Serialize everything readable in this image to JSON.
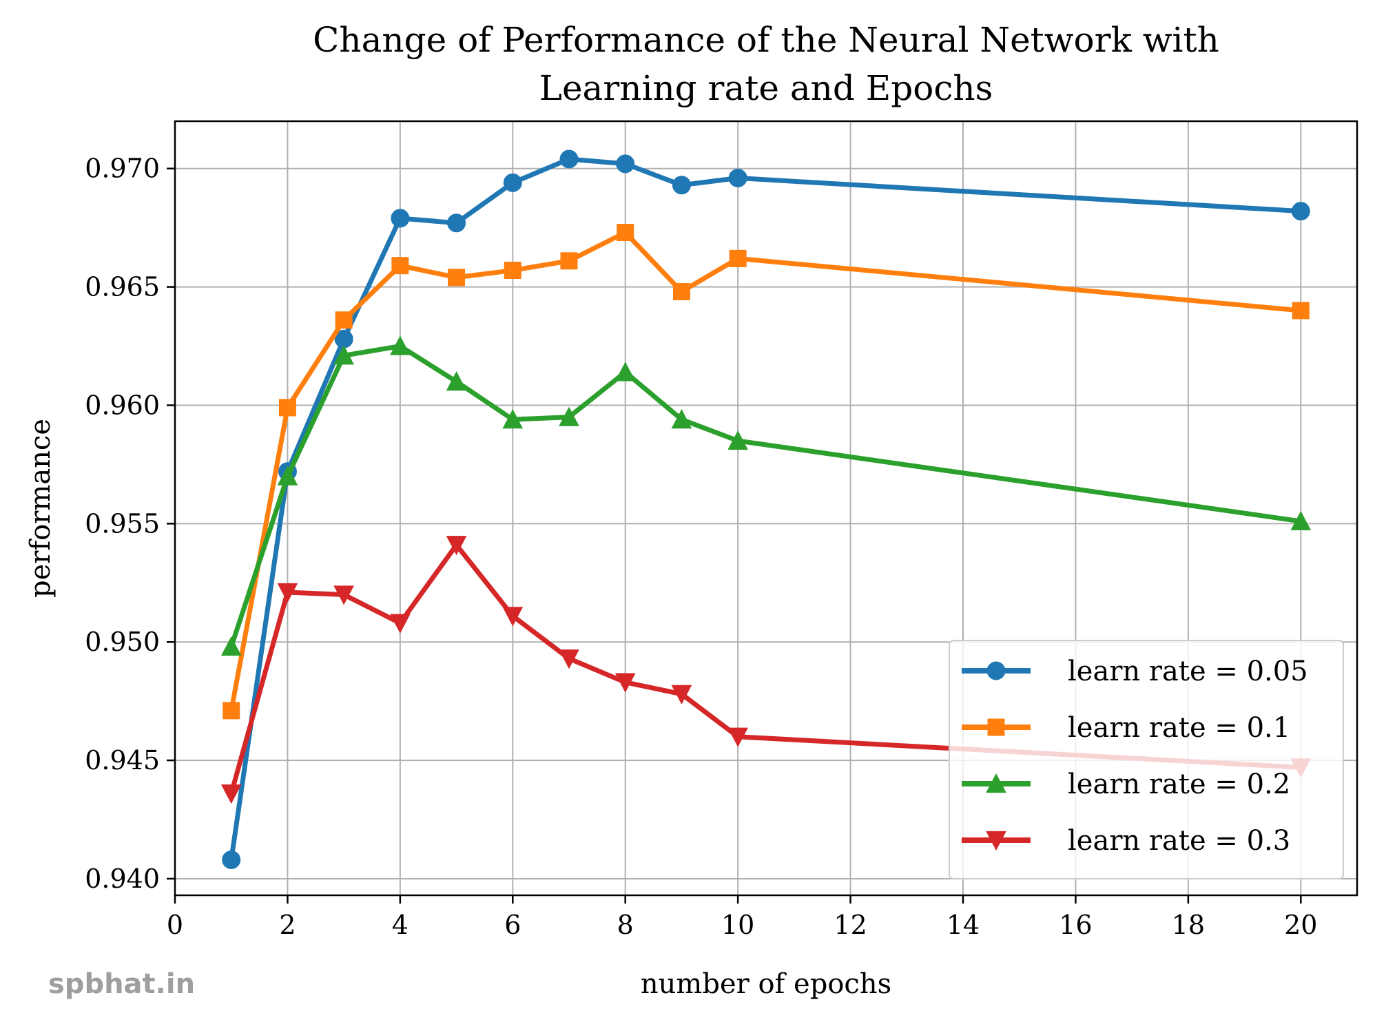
{
  "watermark": "spbhat.in",
  "chart_data": {
    "type": "line",
    "title": [
      "Change of Performance of the Neural Network with",
      "Learning rate and Epochs"
    ],
    "xlabel": "number of epochs",
    "ylabel": "performance",
    "xlim": [
      0,
      21
    ],
    "ylim": [
      0.9393,
      0.972
    ],
    "xticks": [
      0,
      2,
      4,
      6,
      8,
      10,
      12,
      14,
      16,
      18,
      20
    ],
    "yticks": [
      0.94,
      0.945,
      0.95,
      0.955,
      0.96,
      0.965,
      0.97
    ],
    "ytick_labels": [
      "0.940",
      "0.945",
      "0.950",
      "0.955",
      "0.960",
      "0.965",
      "0.970"
    ],
    "grid": true,
    "legend_position": "lower-right",
    "x": [
      1,
      2,
      3,
      4,
      5,
      6,
      7,
      8,
      9,
      10,
      20
    ],
    "series": [
      {
        "name": "learn rate = 0.05",
        "color": "#1f77b4",
        "marker": "circle",
        "values": [
          0.9408,
          0.9572,
          0.9628,
          0.9679,
          0.9677,
          0.9694,
          0.9704,
          0.9702,
          0.9693,
          0.9696,
          0.9682
        ]
      },
      {
        "name": "learn rate = 0.1",
        "color": "#ff7f0e",
        "marker": "square",
        "values": [
          0.9471,
          0.9599,
          0.9636,
          0.9659,
          0.9654,
          0.9657,
          0.9661,
          0.9673,
          0.9648,
          0.9662,
          0.964
        ]
      },
      {
        "name": "learn rate = 0.2",
        "color": "#2ca02c",
        "marker": "triangle-up",
        "values": [
          0.9498,
          0.957,
          0.9621,
          0.9625,
          0.961,
          0.9594,
          0.9595,
          0.9614,
          0.9594,
          0.9585,
          0.9551
        ]
      },
      {
        "name": "learn rate = 0.3",
        "color": "#d62728",
        "marker": "triangle-down",
        "values": [
          0.9436,
          0.9521,
          0.952,
          0.9508,
          0.9541,
          0.9511,
          0.9493,
          0.9483,
          0.9478,
          0.946,
          0.9447
        ]
      }
    ]
  }
}
